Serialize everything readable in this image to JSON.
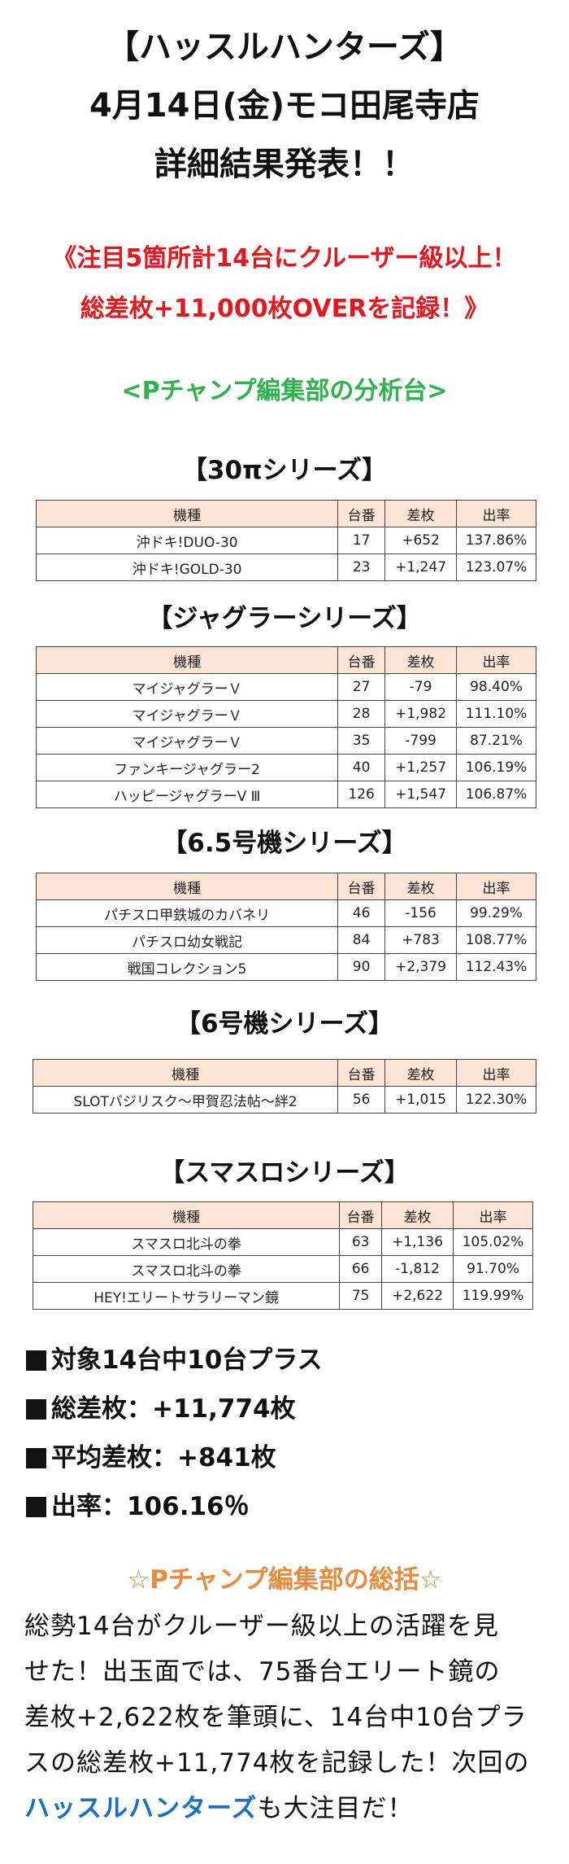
{
  "header": {
    "line1": "【ハッスルハンターズ】",
    "line2": "4月14日(金)モコ田尾寺店",
    "line3": "詳細結果発表！！"
  },
  "headline": {
    "line1": "《注目5箇所計14台にクルーザー級以上！",
    "line2": "総差枚+11,000枚OVERを記録！》"
  },
  "subheading": "<Pチャンプ編集部の分析台>",
  "columns": {
    "model": "機種",
    "unit": "台番",
    "diff": "差枚",
    "rate": "出率"
  },
  "sections": [
    {
      "title": "【30πシリーズ】",
      "rows": [
        {
          "model": "沖ドキ!DUO-30",
          "unit": "17",
          "diff": "+652",
          "rate": "137.86%"
        },
        {
          "model": "沖ドキ!GOLD-30",
          "unit": "23",
          "diff": "+1,247",
          "rate": "123.07%"
        }
      ]
    },
    {
      "title": "【ジャグラーシリーズ】",
      "rows": [
        {
          "model": "マイジャグラーＶ",
          "unit": "27",
          "diff": "-79",
          "rate": "98.40%"
        },
        {
          "model": "マイジャグラーＶ",
          "unit": "28",
          "diff": "+1,982",
          "rate": "111.10%"
        },
        {
          "model": "マイジャグラーＶ",
          "unit": "35",
          "diff": "-799",
          "rate": "87.21%"
        },
        {
          "model": "ファンキージャグラー2",
          "unit": "40",
          "diff": "+1,257",
          "rate": "106.19%"
        },
        {
          "model": "ハッピージャグラーV Ⅲ",
          "unit": "126",
          "diff": "+1,547",
          "rate": "106.87%"
        }
      ]
    },
    {
      "title": "【6.5号機シリーズ】",
      "rows": [
        {
          "model": "パチスロ甲鉄城のカバネリ",
          "unit": "46",
          "diff": "-156",
          "rate": "99.29%"
        },
        {
          "model": "パチスロ幼女戦記",
          "unit": "84",
          "diff": "+783",
          "rate": "108.77%"
        },
        {
          "model": "戦国コレクション5",
          "unit": "90",
          "diff": "+2,379",
          "rate": "112.43%"
        }
      ]
    },
    {
      "title": "【6号機シリーズ】",
      "rows": [
        {
          "model": "SLOTバジリスク～甲賀忍法帖～絆2",
          "unit": "56",
          "diff": "+1,015",
          "rate": "122.30%"
        }
      ]
    },
    {
      "title": "【スマスロシリーズ】",
      "rows": [
        {
          "model": "スマスロ北斗の拳",
          "unit": "63",
          "diff": "+1,136",
          "rate": "105.02%"
        },
        {
          "model": "スマスロ北斗の拳",
          "unit": "66",
          "diff": "-1,812",
          "rate": "91.70%"
        },
        {
          "model": "HEY!エリートサラリーマン鏡",
          "unit": "75",
          "diff": "+2,622",
          "rate": "119.99%"
        }
      ]
    }
  ],
  "summary": [
    "対象14台中10台プラス",
    "総差枚：+11,774枚",
    "平均差枚：+841枚",
    "出率：106.16％"
  ],
  "review": {
    "title": "☆Pチャンプ編集部の総括☆",
    "lines": [
      "総勢14台がクルーザー級以上の活躍を見",
      "せた！出玉面では、75番台エリート鏡の",
      "差枚+2,622枚を筆頭に、14台中10台プラ",
      "スの総差枚+11,774枚を記録した！次回の"
    ],
    "highlight": "ハッスルハンターズ",
    "tail": "も大注目だ！"
  },
  "colors": {
    "headline_red": "#e8151b",
    "subheading_green": "#2cb34a",
    "review_orange": "#e98b3a",
    "highlight_blue": "#1a6fc9",
    "table_header_bg": "#fbe3d6"
  }
}
